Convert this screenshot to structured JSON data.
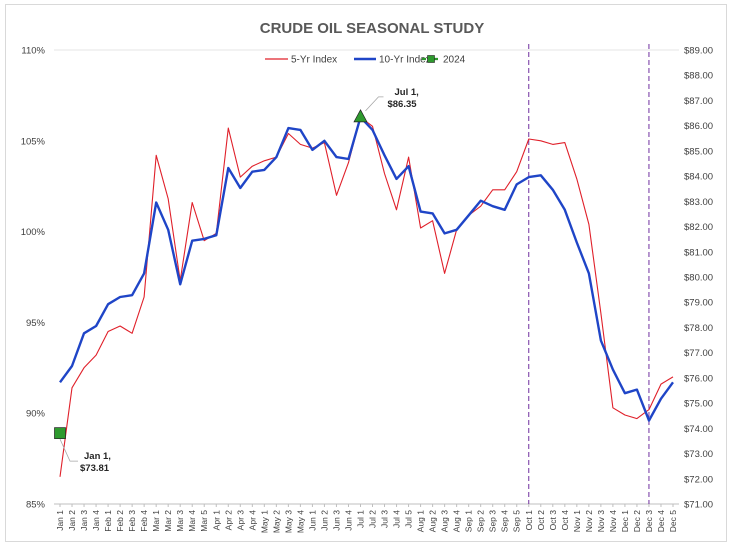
{
  "chart_data": {
    "type": "line",
    "title": "CRUDE OIL SEASONAL STUDY",
    "categories": [
      "Jan 1",
      "Jan 2",
      "Jan 3",
      "Jan 4",
      "Feb 1",
      "Feb 2",
      "Feb 3",
      "Feb 4",
      "Mar 1",
      "Mar 2",
      "Mar 3",
      "Mar 4",
      "Mar 5",
      "Apr 1",
      "Apr 2",
      "Apr 3",
      "Apr 4",
      "May 1",
      "May 2",
      "May 3",
      "May 4",
      "Jun 1",
      "Jun 2",
      "Jun 3",
      "Jun 4",
      "Jul 1",
      "Jul 2",
      "Jul 3",
      "Jul 4",
      "Jul 5",
      "Aug 1",
      "Aug 2",
      "Aug 3",
      "Aug 4",
      "Sep 1",
      "Sep 2",
      "Sep 3",
      "Sep 4",
      "Sep 5",
      "Oct 1",
      "Oct 2",
      "Oct 3",
      "Oct 4",
      "Nov 1",
      "Nov 2",
      "Nov 3",
      "Nov 4",
      "Dec 1",
      "Dec 2",
      "Dec 3",
      "Dec 4",
      "Dec 5"
    ],
    "y_left": {
      "min": 85,
      "max": 110,
      "step": 5,
      "tick_labels": [
        "85%",
        "90%",
        "95%",
        "100%",
        "105%",
        "110%"
      ]
    },
    "y_right": {
      "min": 71,
      "max": 89,
      "step": 1,
      "tick_labels": [
        "$71.00",
        "$72.00",
        "$73.00",
        "$74.00",
        "$75.00",
        "$76.00",
        "$77.00",
        "$78.00",
        "$79.00",
        "$80.00",
        "$81.00",
        "$82.00",
        "$83.00",
        "$84.00",
        "$85.00",
        "$86.00",
        "$87.00",
        "$88.00",
        "$89.00"
      ]
    },
    "series": [
      {
        "name": "5-Yr Index",
        "color": "#e0202a",
        "axis": "left",
        "values": [
          86.5,
          91.4,
          92.5,
          93.2,
          94.5,
          94.8,
          94.4,
          96.4,
          104.2,
          101.8,
          97.3,
          101.6,
          99.5,
          99.9,
          105.7,
          103.0,
          103.6,
          103.9,
          104.1,
          105.4,
          104.8,
          104.6,
          104.9,
          102.0,
          103.8,
          106.3,
          105.8,
          103.2,
          101.2,
          104.1,
          100.2,
          100.6,
          97.7,
          100.1,
          100.9,
          101.4,
          102.3,
          102.3,
          103.3,
          105.1,
          105.0,
          104.8,
          104.9,
          102.9,
          100.4,
          95.5,
          90.3,
          89.9,
          89.7,
          90.2,
          91.6,
          92.0
        ]
      },
      {
        "name": "10-Yr Index",
        "color": "#1f45c7",
        "axis": "left",
        "values": [
          91.7,
          92.6,
          94.4,
          94.8,
          96.0,
          96.4,
          96.5,
          97.7,
          101.6,
          100.1,
          97.1,
          99.5,
          99.6,
          99.8,
          103.5,
          102.4,
          103.3,
          103.4,
          104.1,
          105.7,
          105.6,
          104.5,
          105.0,
          104.1,
          104.0,
          106.3,
          105.6,
          104.2,
          102.9,
          103.6,
          101.1,
          101.0,
          99.9,
          100.1,
          100.9,
          101.7,
          101.4,
          101.2,
          102.6,
          103.0,
          103.1,
          102.3,
          101.2,
          99.4,
          97.7,
          94.0,
          92.4,
          91.1,
          91.3,
          89.6,
          90.8,
          91.7
        ]
      },
      {
        "name": "2024",
        "color": "#2e9a2e",
        "axis": "right",
        "points": [
          {
            "category": "Jan 1",
            "value": 73.81
          },
          {
            "category": "Jul 1",
            "value": 86.35
          }
        ]
      }
    ],
    "annotations": [
      {
        "category": "Jan 1",
        "line1": "Jan 1,",
        "line2": "$73.81"
      },
      {
        "category": "Jul 1",
        "line1": "Jul 1,",
        "line2": "$86.35"
      }
    ],
    "vertical_markers": [
      "Oct 1",
      "Dec 3"
    ],
    "legend": {
      "position": "top-center",
      "entries": [
        "5-Yr Index",
        "10-Yr Index",
        "2024"
      ]
    }
  }
}
